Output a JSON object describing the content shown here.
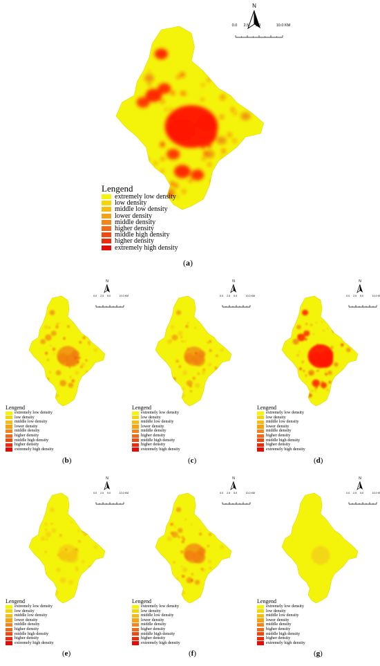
{
  "north_label": "N",
  "scale": {
    "ticks": [
      "0.0",
      "2.5",
      "5.0",
      "10.0 KM"
    ]
  },
  "legend": {
    "title": "Lengend",
    "items": [
      {
        "label": "extremely low density",
        "color": "#f4f40a"
      },
      {
        "label": "low density",
        "color": "#f5d60a"
      },
      {
        "label": "middle low density",
        "color": "#f5bc12"
      },
      {
        "label": "lower density",
        "color": "#f4a218"
      },
      {
        "label": "middle density",
        "color": "#f2861c"
      },
      {
        "label": "higher density",
        "color": "#ef6a1a"
      },
      {
        "label": "middle high density",
        "color": "#ec4a14"
      },
      {
        "label": "higher density",
        "color": "#e82c0e"
      },
      {
        "label": "extremely high density",
        "color": "#e50c08"
      }
    ]
  },
  "colors": {
    "base": "#f4f40a",
    "hot": "#ff1a00",
    "mid": "#f07a10"
  },
  "panels": [
    {
      "id": "a",
      "caption": "a",
      "intensity": 1.0
    },
    {
      "id": "b",
      "caption": "b",
      "intensity": 0.55
    },
    {
      "id": "c",
      "caption": "c",
      "intensity": 0.45
    },
    {
      "id": "d",
      "caption": "d",
      "intensity": 0.85
    },
    {
      "id": "e",
      "caption": "e",
      "intensity": 0.35
    },
    {
      "id": "f",
      "caption": "f",
      "intensity": 0.5
    },
    {
      "id": "g",
      "caption": "g",
      "intensity": 0.05
    }
  ]
}
